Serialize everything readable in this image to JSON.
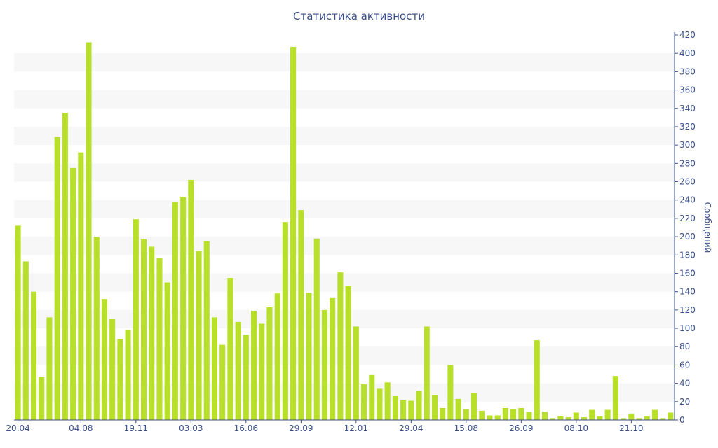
{
  "chart_data": {
    "type": "bar",
    "title": "Статистика активности",
    "xlabel": "",
    "ylabel": "Сообщений",
    "ylim": [
      0,
      420
    ],
    "y_ticks": [
      0,
      20,
      40,
      60,
      80,
      100,
      120,
      140,
      160,
      180,
      200,
      220,
      240,
      260,
      280,
      300,
      320,
      340,
      360,
      380,
      400,
      420
    ],
    "y_axis_side": "right",
    "grid": "alternating horizontal bands",
    "bar_color": "#b8e02a",
    "band_color": "#f7f7f7",
    "text_color": "#3a4f8a",
    "x_tick_labels": [
      {
        "index": 0,
        "label": "20.04"
      },
      {
        "index": 8,
        "label": "04.08"
      },
      {
        "index": 15,
        "label": "19.11"
      },
      {
        "index": 22,
        "label": "03.03"
      },
      {
        "index": 29,
        "label": "16.06"
      },
      {
        "index": 36,
        "label": "29.09"
      },
      {
        "index": 43,
        "label": "12.01"
      },
      {
        "index": 50,
        "label": "29.04"
      },
      {
        "index": 57,
        "label": "15.08"
      },
      {
        "index": 64,
        "label": "26.09"
      },
      {
        "index": 71,
        "label": "08.10"
      },
      {
        "index": 78,
        "label": "21.10"
      }
    ],
    "values": [
      212,
      173,
      140,
      47,
      112,
      309,
      335,
      275,
      292,
      412,
      200,
      132,
      110,
      88,
      98,
      219,
      197,
      189,
      177,
      150,
      238,
      243,
      262,
      184,
      195,
      112,
      82,
      155,
      107,
      93,
      119,
      105,
      123,
      138,
      216,
      407,
      229,
      139,
      198,
      120,
      133,
      161,
      146,
      102,
      39,
      49,
      34,
      41,
      26,
      22,
      21,
      32,
      102,
      27,
      13,
      60,
      23,
      12,
      29,
      10,
      5,
      5,
      13,
      12,
      13,
      9,
      87,
      9,
      2,
      4,
      3,
      8,
      3,
      11,
      4,
      11,
      48,
      2,
      7,
      2,
      4,
      11,
      2,
      8
    ]
  }
}
